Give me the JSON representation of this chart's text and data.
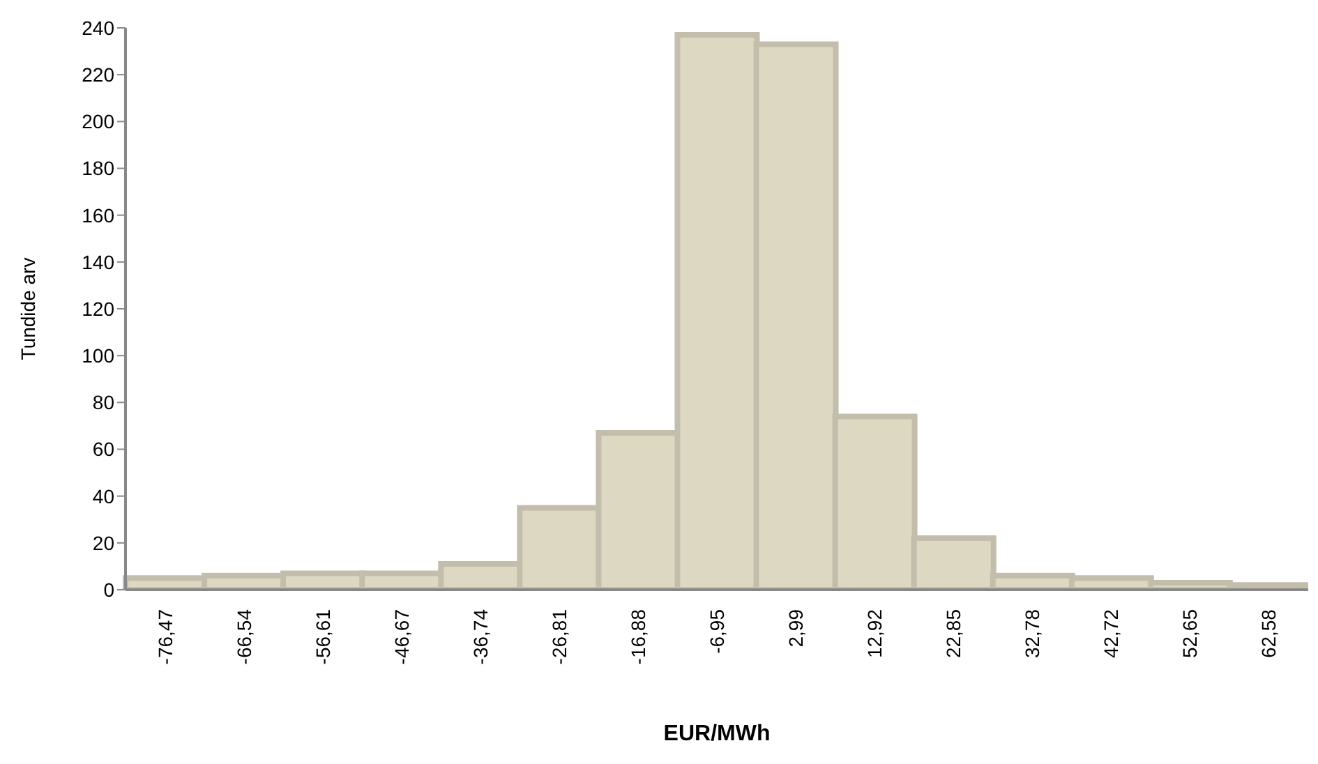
{
  "chart_data": {
    "type": "bar",
    "xlabel": "EUR/MWh",
    "ylabel": "Tundide arv",
    "categories": [
      "-76,47",
      "-66,54",
      "-56,61",
      "-46,67",
      "-36,74",
      "-26,81",
      "-16,88",
      "-6,95",
      "2,99",
      "12,92",
      "22,85",
      "32,78",
      "42,72",
      "52,65",
      "62,58"
    ],
    "series": [
      {
        "color": "#ddd8c2",
        "values": [
          5,
          6,
          7,
          7,
          11,
          35,
          67,
          237,
          233,
          74,
          22,
          6,
          5,
          3,
          2
        ]
      }
    ],
    "ylim": [
      0,
      240
    ],
    "yticks": [
      0,
      20,
      40,
      60,
      80,
      100,
      120,
      140,
      160,
      180,
      200,
      220,
      240
    ],
    "grid": false,
    "legend": false
  }
}
